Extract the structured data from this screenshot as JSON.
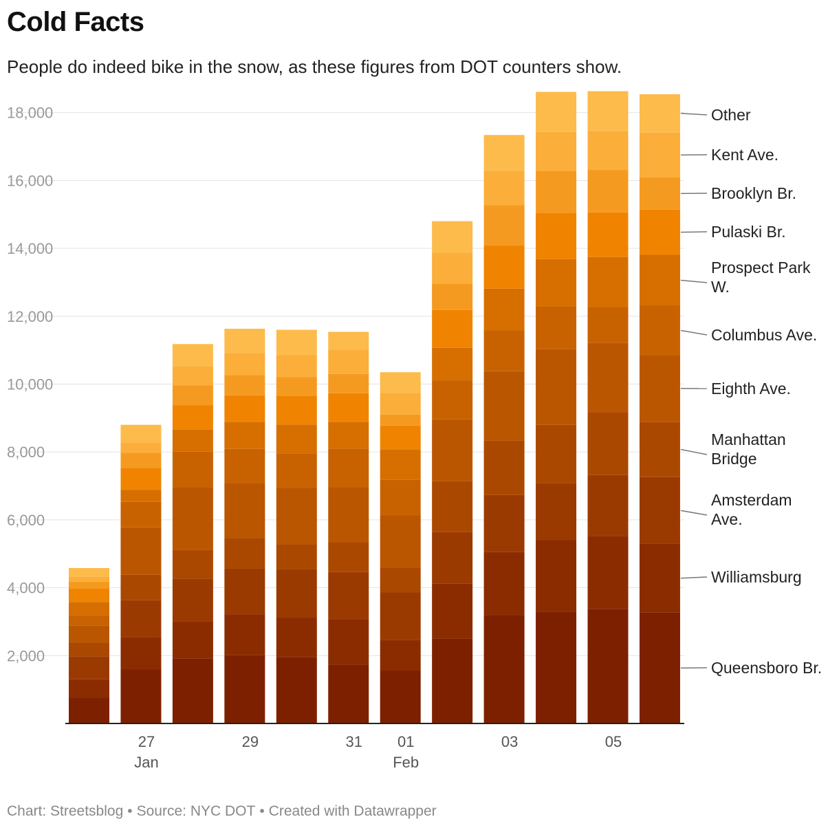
{
  "title": "Cold Facts",
  "subtitle": "People do indeed bike in the snow, as these figures from DOT counters show.",
  "footer": {
    "chart_credit": "Chart: Streetsblog",
    "source": "Source: NYC DOT",
    "created": "Created with Datawrapper",
    "separator": "•"
  },
  "chart_data": {
    "type": "bar",
    "stacked": true,
    "title": "Cold Facts",
    "xlabel": "",
    "ylabel": "",
    "ylim": [
      0,
      18600
    ],
    "yticks": [
      2000,
      4000,
      6000,
      8000,
      10000,
      12000,
      14000,
      16000,
      18000
    ],
    "ytick_labels": [
      "2,000",
      "4,000",
      "6,000",
      "8,000",
      "10,000",
      "12,000",
      "14,000",
      "16,000",
      "18,000"
    ],
    "categories": [
      "Jan 26",
      "Jan 27",
      "Jan 28",
      "Jan 29",
      "Jan 30",
      "Jan 31",
      "Feb 01",
      "Feb 02",
      "Feb 03",
      "Feb 04",
      "Feb 05",
      "Feb 06"
    ],
    "x_tick_labels": [
      {
        "index": 1,
        "line1": "27",
        "line2": "Jan"
      },
      {
        "index": 3,
        "line1": "29",
        "line2": ""
      },
      {
        "index": 5,
        "line1": "31",
        "line2": ""
      },
      {
        "index": 6,
        "line1": "01",
        "line2": "Feb"
      },
      {
        "index": 8,
        "line1": "03",
        "line2": ""
      },
      {
        "index": 10,
        "line1": "05",
        "line2": ""
      }
    ],
    "legend_position": "right",
    "series": [
      {
        "name": "Queensboro Br.",
        "color": "#7d2000",
        "values": [
          750,
          1600,
          1920,
          2020,
          1960,
          1740,
          1560,
          2500,
          3200,
          3300,
          3380,
          3270
        ]
      },
      {
        "name": "Williamsburg",
        "color": "#8b2c00",
        "values": [
          550,
          950,
          1080,
          1200,
          1160,
          1320,
          900,
          1620,
          1860,
          2100,
          2140,
          2020
        ]
      },
      {
        "name": "Amsterdam Ave.",
        "color": "#9b3a00",
        "values": [
          680,
          1080,
          1270,
          1340,
          1420,
          1400,
          1400,
          1520,
          1670,
          1680,
          1800,
          1970
        ]
      },
      {
        "name": "Manhattan Bridge",
        "color": "#ab4800",
        "values": [
          400,
          750,
          850,
          900,
          740,
          880,
          720,
          1500,
          1600,
          1720,
          1850,
          1630
        ]
      },
      {
        "name": "Eighth Ave.",
        "color": "#bb5600",
        "values": [
          500,
          1400,
          1830,
          1630,
          1650,
          1610,
          1550,
          1820,
          2050,
          2230,
          2050,
          1960
        ]
      },
      {
        "name": "Columbus Ave.",
        "color": "#c86200",
        "values": [
          300,
          750,
          1060,
          1000,
          1030,
          1150,
          1050,
          1150,
          1200,
          1250,
          1050,
          1460
        ]
      },
      {
        "name": "Prospect Park W.",
        "color": "#d66f00",
        "values": [
          400,
          350,
          650,
          800,
          850,
          790,
          900,
          960,
          1230,
          1400,
          1470,
          1500
        ]
      },
      {
        "name": "Pulaski Br.",
        "color": "#f08400",
        "values": [
          400,
          650,
          720,
          780,
          850,
          840,
          700,
          1110,
          1280,
          1370,
          1320,
          1330
        ]
      },
      {
        "name": "Brooklyn Br.",
        "color": "#f59a20",
        "values": [
          200,
          450,
          580,
          600,
          550,
          570,
          320,
          780,
          1180,
          1230,
          1250,
          950
        ]
      },
      {
        "name": "Kent Ave.",
        "color": "#fbae3a",
        "values": [
          150,
          300,
          570,
          640,
          640,
          720,
          640,
          900,
          1010,
          1150,
          1150,
          1320
        ]
      },
      {
        "name": "Other",
        "color": "#fdbb4b",
        "values": [
          250,
          520,
          650,
          720,
          750,
          520,
          610,
          940,
          1060,
          1180,
          1170,
          1130
        ]
      }
    ],
    "legend_labels": [
      {
        "series": "Other",
        "lines": [
          "Other"
        ]
      },
      {
        "series": "Kent Ave.",
        "lines": [
          "Kent Ave."
        ]
      },
      {
        "series": "Brooklyn Br.",
        "lines": [
          "Brooklyn Br."
        ]
      },
      {
        "series": "Pulaski Br.",
        "lines": [
          "Pulaski Br."
        ]
      },
      {
        "series": "Prospect Park W.",
        "lines": [
          "Prospect Park",
          "W."
        ]
      },
      {
        "series": "Columbus Ave.",
        "lines": [
          "Columbus Ave."
        ]
      },
      {
        "series": "Eighth Ave.",
        "lines": [
          "Eighth Ave."
        ]
      },
      {
        "series": "Manhattan Bridge",
        "lines": [
          "Manhattan",
          "Bridge"
        ]
      },
      {
        "series": "Amsterdam Ave.",
        "lines": [
          "Amsterdam",
          "Ave."
        ]
      },
      {
        "series": "Williamsburg",
        "lines": [
          "Williamsburg"
        ]
      },
      {
        "series": "Queensboro Br.",
        "lines": [
          "Queensboro Br."
        ]
      }
    ]
  }
}
